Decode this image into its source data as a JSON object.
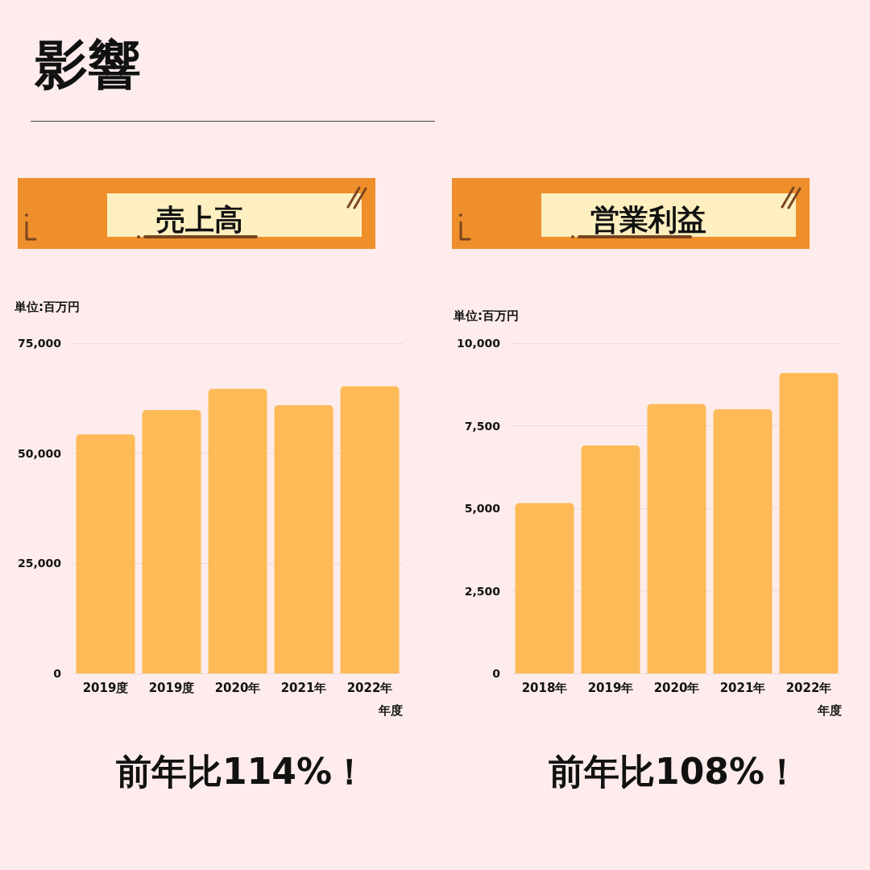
{
  "chart_data": [
    {
      "type": "other",
      "title": "影響"
    },
    {
      "type": "bar",
      "title": "売上高",
      "ylabel": "単位:百万円",
      "xlabel": "年度",
      "categories": [
        "2019度",
        "2019度",
        "2020年",
        "2021年",
        "2022年"
      ],
      "values": [
        54300,
        59800,
        64600,
        60900,
        65200
      ],
      "color": "#fdba57",
      "ylim": [
        0,
        75000
      ],
      "yticks": [
        0,
        {
          "value": 25000,
          "label": "25,000"
        },
        {
          "value": 50000,
          "label": "50,000"
        },
        {
          "value": 75000,
          "label": "75,000"
        }
      ],
      "grid": "y",
      "annotations": [
        "前年比114%！"
      ]
    },
    {
      "type": "bar",
      "title": "営業利益",
      "ylabel": "単位:百万円",
      "xlabel": "年度",
      "categories": [
        "2018年",
        "2019年",
        "2020年",
        "2021年",
        "2022年"
      ],
      "values": [
        5160,
        6900,
        8160,
        8000,
        9100
      ],
      "color": "#fdba57",
      "ylim": [
        0,
        10000
      ],
      "yticks": [
        0,
        {
          "value": 2500,
          "label": "2,500"
        },
        {
          "value": 5000,
          "label": "5,000"
        },
        {
          "value": 7500,
          "label": "7,500"
        },
        {
          "value": 10000,
          "label": "10,000"
        }
      ],
      "grid": "y",
      "annotations": [
        "前年比108%！"
      ]
    }
  ]
}
